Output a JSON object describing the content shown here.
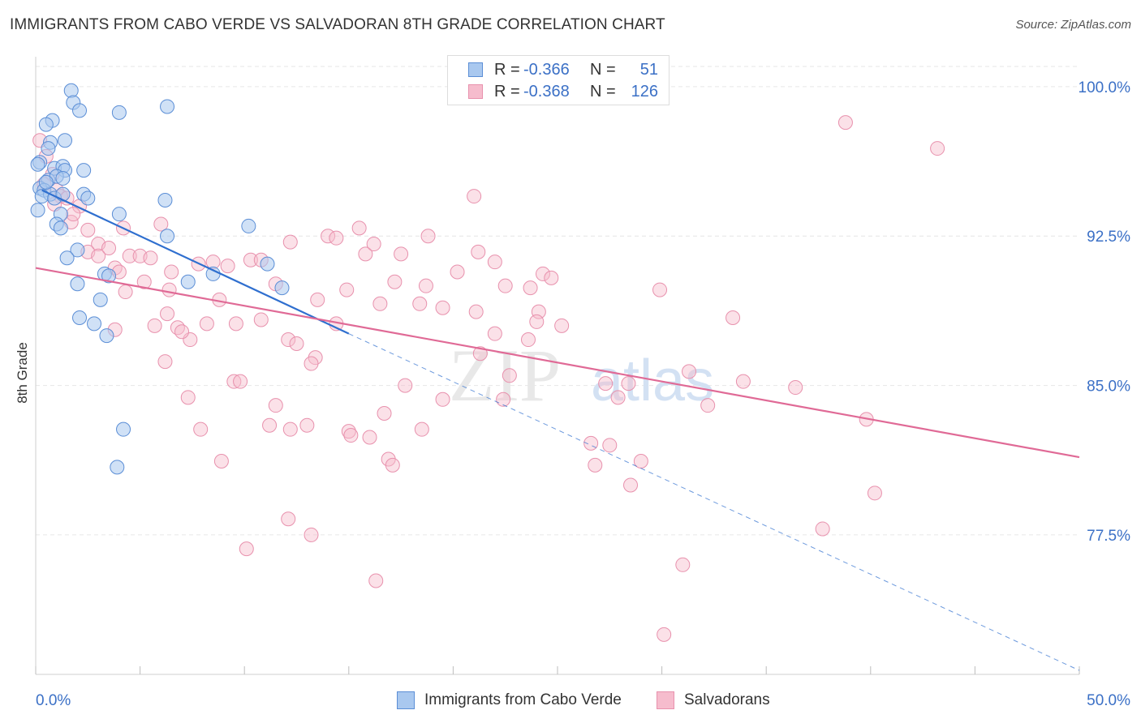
{
  "title": "IMMIGRANTS FROM CABO VERDE VS SALVADORAN 8TH GRADE CORRELATION CHART",
  "source": "Source: ZipAtlas.com",
  "colors": {
    "blue_fill": "#a9c8ef",
    "blue_stroke": "#5b8ed6",
    "blue_line": "#2f6fcf",
    "pink_fill": "#f6bccd",
    "pink_stroke": "#e891ad",
    "pink_line": "#e06a96",
    "tick_label": "#3b70c6",
    "grid": "#e6e6e6"
  },
  "legend": {
    "rows": [
      {
        "r_label": "R =",
        "r_value": "-0.366",
        "n_label": "N =",
        "n_value": "51"
      },
      {
        "r_label": "R =",
        "r_value": "-0.368",
        "n_label": "N =",
        "n_value": "126"
      }
    ]
  },
  "bottom_legend": [
    "Immigrants from Cabo Verde",
    "Salvadorans"
  ],
  "watermark": {
    "zip": "ZIP",
    "atlas": "atlas"
  },
  "chart_data": {
    "type": "scatter",
    "xlabel": "",
    "ylabel": "8th Grade",
    "xlim": [
      0,
      50
    ],
    "ylim": [
      70.5,
      101.5
    ],
    "x_tick_labels": [
      {
        "value": 0,
        "label": "0.0%"
      },
      {
        "value": 50,
        "label": "50.0%"
      }
    ],
    "y_tick_labels": [
      {
        "value": 100,
        "label": "100.0%"
      },
      {
        "value": 92.5,
        "label": "92.5%"
      },
      {
        "value": 85,
        "label": "85.0%"
      },
      {
        "value": 77.5,
        "label": "77.5%"
      }
    ],
    "grid": true,
    "series": [
      {
        "name": "Immigrants from Cabo Verde",
        "trend": {
          "x": [
            0.3,
            15.0
          ],
          "y": [
            94.8,
            87.6
          ],
          "dashed_to": [
            50,
            70.7
          ]
        },
        "points": [
          [
            1.7,
            99.8
          ],
          [
            1.8,
            99.2
          ],
          [
            2.1,
            98.8
          ],
          [
            4.0,
            98.7
          ],
          [
            6.3,
            99.0
          ],
          [
            0.8,
            98.3
          ],
          [
            0.5,
            98.1
          ],
          [
            0.7,
            97.2
          ],
          [
            0.6,
            96.9
          ],
          [
            1.4,
            97.3
          ],
          [
            0.2,
            96.2
          ],
          [
            0.9,
            95.9
          ],
          [
            1.3,
            96.0
          ],
          [
            1.4,
            95.8
          ],
          [
            2.3,
            95.8
          ],
          [
            0.6,
            95.3
          ],
          [
            1.0,
            95.5
          ],
          [
            1.3,
            95.4
          ],
          [
            0.2,
            94.9
          ],
          [
            0.4,
            94.8
          ],
          [
            0.7,
            94.6
          ],
          [
            0.3,
            94.5
          ],
          [
            0.9,
            94.4
          ],
          [
            1.3,
            94.6
          ],
          [
            2.3,
            94.6
          ],
          [
            2.5,
            94.4
          ],
          [
            0.1,
            93.8
          ],
          [
            1.2,
            93.6
          ],
          [
            4.0,
            93.6
          ],
          [
            6.2,
            94.3
          ],
          [
            1.0,
            93.1
          ],
          [
            1.2,
            92.9
          ],
          [
            6.3,
            92.5
          ],
          [
            10.2,
            93.0
          ],
          [
            2.0,
            91.8
          ],
          [
            1.5,
            91.4
          ],
          [
            11.1,
            91.1
          ],
          [
            3.3,
            90.6
          ],
          [
            3.5,
            90.5
          ],
          [
            7.3,
            90.2
          ],
          [
            8.5,
            90.6
          ],
          [
            2.0,
            90.1
          ],
          [
            3.1,
            89.3
          ],
          [
            11.8,
            89.9
          ],
          [
            2.1,
            88.4
          ],
          [
            2.8,
            88.1
          ],
          [
            3.4,
            87.5
          ],
          [
            4.2,
            82.8
          ],
          [
            3.9,
            80.9
          ],
          [
            0.1,
            96.1
          ],
          [
            0.5,
            95.2
          ]
        ]
      },
      {
        "name": "Salvadorans",
        "trend": {
          "x": [
            0,
            50
          ],
          "y": [
            90.9,
            81.4
          ]
        },
        "points": [
          [
            0.2,
            97.3
          ],
          [
            0.5,
            96.5
          ],
          [
            0.8,
            95.6
          ],
          [
            0.4,
            95.1
          ],
          [
            1.0,
            94.8
          ],
          [
            1.2,
            94.5
          ],
          [
            1.5,
            94.4
          ],
          [
            2.1,
            94.0
          ],
          [
            0.9,
            94.1
          ],
          [
            1.7,
            93.2
          ],
          [
            2.5,
            92.8
          ],
          [
            1.8,
            93.6
          ],
          [
            4.2,
            92.9
          ],
          [
            6.0,
            93.1
          ],
          [
            3.0,
            92.1
          ],
          [
            3.5,
            91.9
          ],
          [
            2.5,
            91.7
          ],
          [
            3.0,
            91.5
          ],
          [
            4.5,
            91.5
          ],
          [
            5.0,
            91.5
          ],
          [
            5.5,
            91.4
          ],
          [
            3.8,
            90.9
          ],
          [
            4.0,
            90.7
          ],
          [
            6.5,
            90.7
          ],
          [
            8.5,
            91.2
          ],
          [
            10.3,
            91.3
          ],
          [
            10.8,
            91.3
          ],
          [
            12.2,
            92.2
          ],
          [
            14.0,
            92.5
          ],
          [
            14.4,
            92.4
          ],
          [
            15.5,
            92.9
          ],
          [
            15.8,
            91.6
          ],
          [
            16.2,
            92.1
          ],
          [
            17.5,
            91.6
          ],
          [
            18.8,
            92.5
          ],
          [
            20.2,
            90.7
          ],
          [
            21.2,
            91.7
          ],
          [
            22.0,
            91.2
          ],
          [
            4.3,
            89.7
          ],
          [
            5.2,
            90.2
          ],
          [
            6.4,
            89.8
          ],
          [
            7.8,
            91.1
          ],
          [
            9.2,
            91.0
          ],
          [
            11.5,
            90.1
          ],
          [
            13.5,
            89.3
          ],
          [
            14.9,
            89.8
          ],
          [
            16.5,
            89.1
          ],
          [
            17.2,
            90.2
          ],
          [
            18.4,
            89.1
          ],
          [
            18.7,
            90.0
          ],
          [
            19.5,
            88.9
          ],
          [
            21.1,
            88.7
          ],
          [
            22.5,
            90.0
          ],
          [
            23.7,
            89.9
          ],
          [
            24.1,
            88.7
          ],
          [
            24.3,
            90.6
          ],
          [
            24.7,
            90.4
          ],
          [
            5.7,
            88.0
          ],
          [
            6.3,
            88.6
          ],
          [
            6.8,
            87.9
          ],
          [
            7.4,
            87.3
          ],
          [
            8.2,
            88.1
          ],
          [
            8.8,
            89.3
          ],
          [
            9.6,
            88.1
          ],
          [
            10.8,
            88.3
          ],
          [
            12.1,
            87.3
          ],
          [
            12.5,
            87.1
          ],
          [
            13.4,
            86.4
          ],
          [
            14.4,
            88.1
          ],
          [
            3.8,
            87.8
          ],
          [
            7.0,
            87.7
          ],
          [
            6.2,
            86.2
          ],
          [
            13.2,
            86.1
          ],
          [
            17.7,
            85.0
          ],
          [
            19.5,
            84.3
          ],
          [
            22.4,
            84.3
          ],
          [
            22.7,
            85.5
          ],
          [
            21.3,
            86.6
          ],
          [
            22.0,
            87.6
          ],
          [
            23.6,
            87.3
          ],
          [
            24.0,
            88.2
          ],
          [
            25.2,
            88.0
          ],
          [
            27.3,
            85.1
          ],
          [
            27.9,
            84.4
          ],
          [
            28.4,
            85.1
          ],
          [
            31.3,
            85.7
          ],
          [
            32.2,
            84.0
          ],
          [
            33.4,
            88.4
          ],
          [
            33.9,
            85.2
          ],
          [
            36.4,
            84.9
          ],
          [
            29.9,
            89.8
          ],
          [
            26.6,
            82.1
          ],
          [
            27.5,
            82.0
          ],
          [
            28.5,
            80.0
          ],
          [
            29.0,
            81.2
          ],
          [
            26.8,
            81.0
          ],
          [
            37.7,
            77.8
          ],
          [
            39.8,
            83.3
          ],
          [
            40.2,
            79.6
          ],
          [
            38.8,
            98.2
          ],
          [
            43.2,
            96.9
          ],
          [
            21.0,
            94.5
          ],
          [
            7.3,
            84.4
          ],
          [
            7.9,
            82.8
          ],
          [
            8.9,
            81.2
          ],
          [
            9.5,
            85.2
          ],
          [
            9.8,
            85.2
          ],
          [
            11.5,
            84.0
          ],
          [
            11.2,
            83.0
          ],
          [
            12.2,
            82.8
          ],
          [
            13.0,
            83.0
          ],
          [
            15.0,
            82.7
          ],
          [
            15.1,
            82.5
          ],
          [
            16.0,
            82.4
          ],
          [
            16.9,
            81.3
          ],
          [
            16.7,
            83.6
          ],
          [
            17.1,
            81.0
          ],
          [
            18.5,
            82.8
          ],
          [
            12.1,
            78.3
          ],
          [
            13.2,
            77.5
          ],
          [
            10.1,
            76.8
          ],
          [
            16.3,
            75.2
          ],
          [
            31.0,
            76.0
          ],
          [
            30.1,
            72.5
          ]
        ]
      }
    ]
  }
}
